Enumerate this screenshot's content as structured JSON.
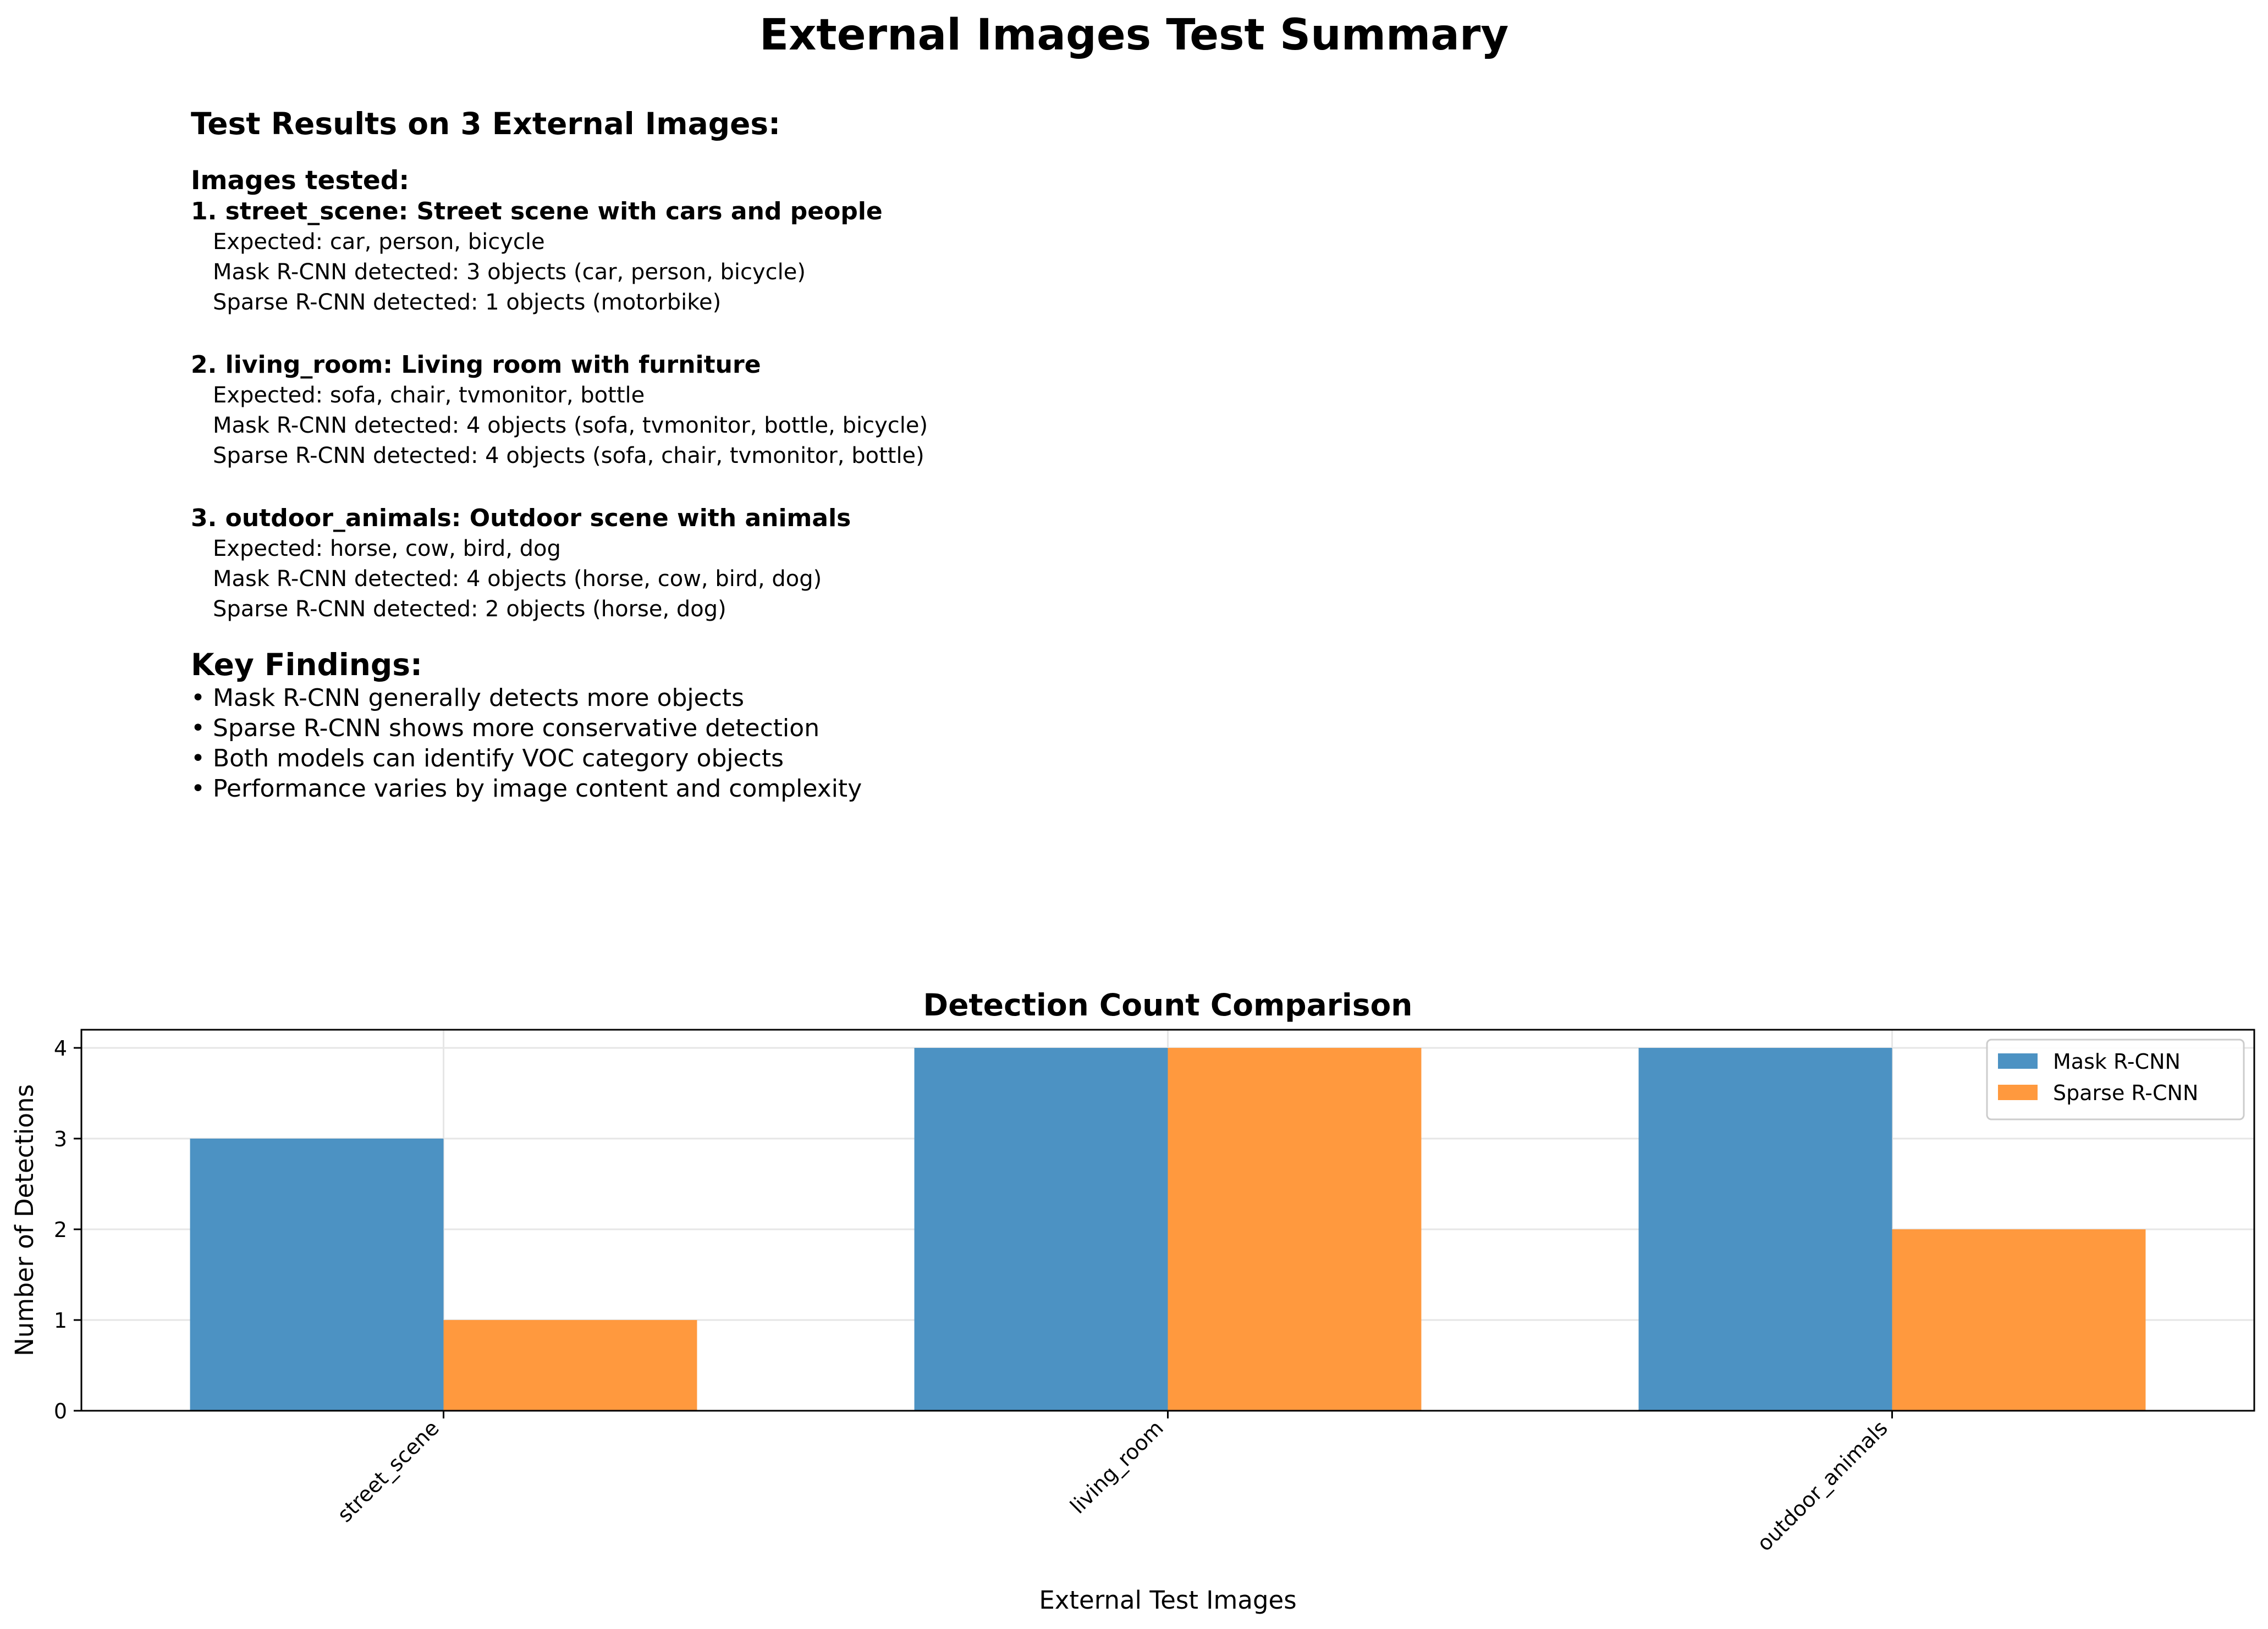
{
  "page_title": "External Images Test Summary",
  "summary": {
    "heading": "Test Results on 3 External Images:",
    "images_heading": "Images tested:",
    "images": [
      {
        "title": "1. street_scene: Street scene with cars and people",
        "expected": "Expected: car, person, bicycle",
        "mask": "Mask R-CNN detected: 3 objects (car, person, bicycle)",
        "sparse": "Sparse R-CNN detected: 1 objects (motorbike)"
      },
      {
        "title": "2. living_room: Living room with furniture",
        "expected": "Expected: sofa, chair, tvmonitor, bottle",
        "mask": "Mask R-CNN detected: 4 objects (sofa, tvmonitor, bottle, bicycle)",
        "sparse": "Sparse R-CNN detected: 4 objects (sofa, chair, tvmonitor, bottle)"
      },
      {
        "title": "3. outdoor_animals: Outdoor scene with animals",
        "expected": "Expected: horse, cow, bird, dog",
        "mask": "Mask R-CNN detected: 4 objects (horse, cow, bird, dog)",
        "sparse": "Sparse R-CNN detected: 2 objects (horse, dog)"
      }
    ],
    "key_findings_heading": "Key Findings:",
    "key_findings": [
      "• Mask R-CNN generally detects more objects",
      "• Sparse R-CNN shows more conservative detection",
      "• Both models can identify VOC category objects",
      "• Performance varies by image content and complexity"
    ]
  },
  "chart_data": {
    "type": "bar",
    "title": "Detection Count Comparison",
    "xlabel": "External Test Images",
    "ylabel": "Number of Detections",
    "categories": [
      "street_scene",
      "living_room",
      "outdoor_animals"
    ],
    "series": [
      {
        "name": "Mask R-CNN",
        "values": [
          3,
          4,
          4
        ],
        "color": "#4c92c3"
      },
      {
        "name": "Sparse R-CNN",
        "values": [
          1,
          4,
          2
        ],
        "color": "#ff993e"
      }
    ],
    "ylim": [
      0,
      4.2
    ],
    "yticks": [
      0,
      1,
      2,
      3,
      4
    ],
    "grid": true,
    "legend_position": "top-right"
  }
}
